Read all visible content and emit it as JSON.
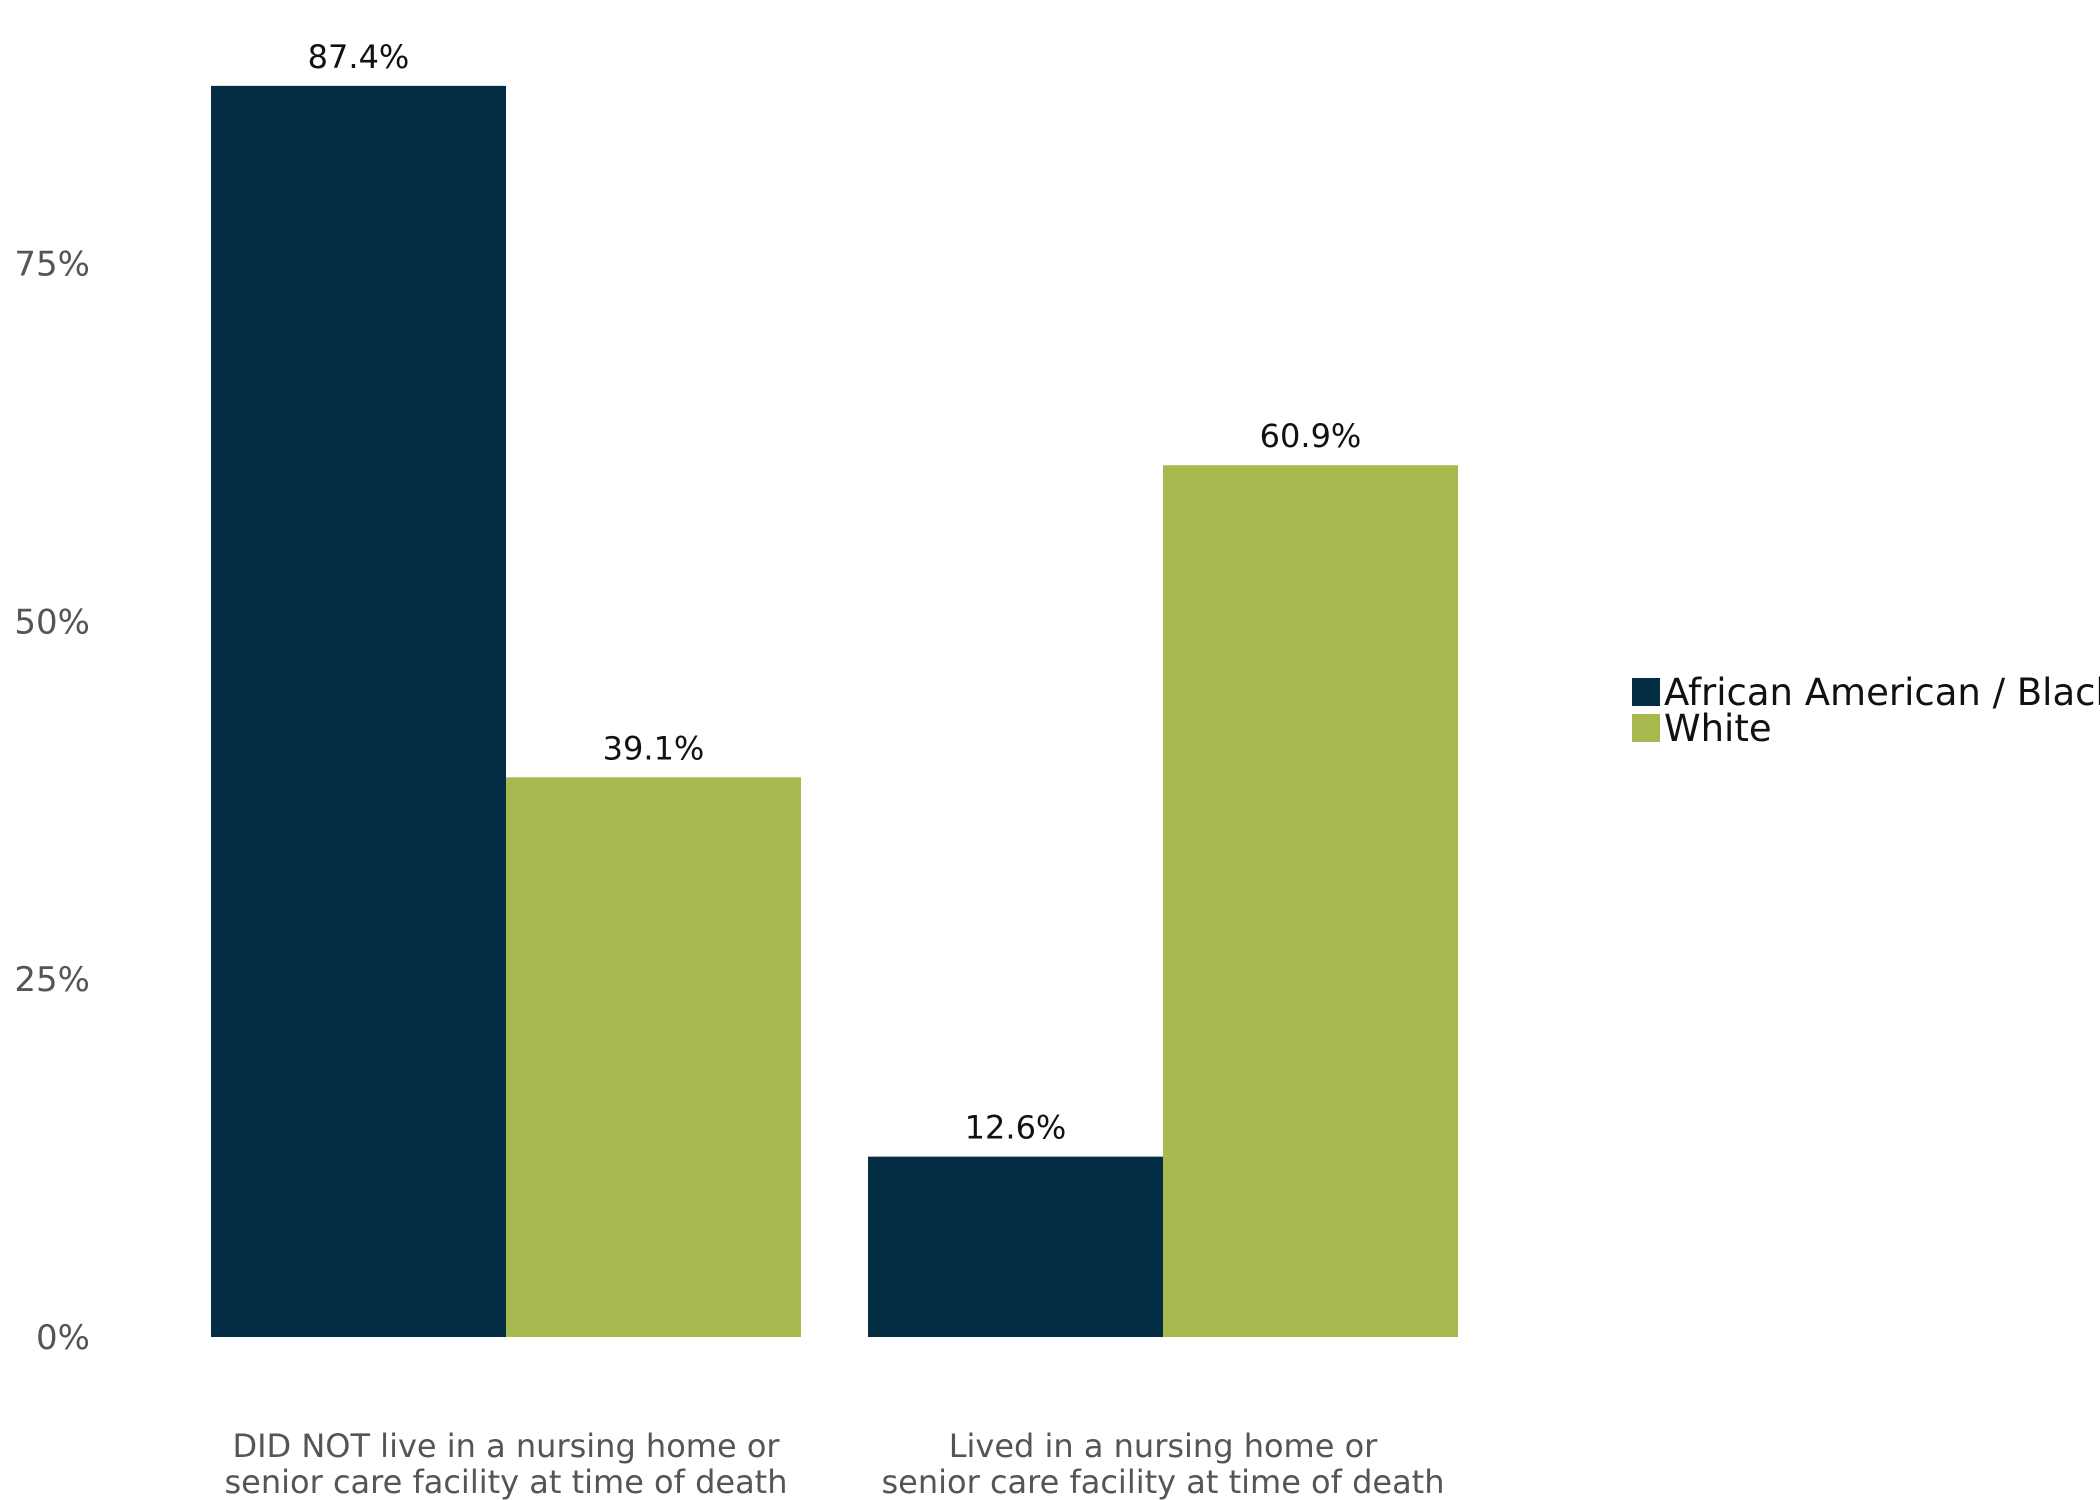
{
  "chart_data": {
    "type": "bar",
    "title": "",
    "xlabel": "",
    "ylabel": "",
    "ylim": [
      0,
      100
    ],
    "yticks": [
      0,
      25,
      50,
      75
    ],
    "ytick_labels": [
      "0%",
      "25%",
      "50%",
      "75%"
    ],
    "categories": [
      [
        "DID NOT live in a nursing home or",
        "senior care facility at time of death"
      ],
      [
        "Lived in a nursing home or",
        "senior care facility at time of death"
      ]
    ],
    "series": [
      {
        "name": "African American / Black",
        "color": "#022d42",
        "values": [
          87.4,
          12.6
        ],
        "labels": [
          "87.4%",
          "12.6%"
        ]
      },
      {
        "name": "White",
        "color": "#a8b950",
        "values": [
          39.1,
          60.9
        ],
        "labels": [
          "39.1%",
          "60.9%"
        ]
      }
    ],
    "legend": "right",
    "grid": false
  }
}
